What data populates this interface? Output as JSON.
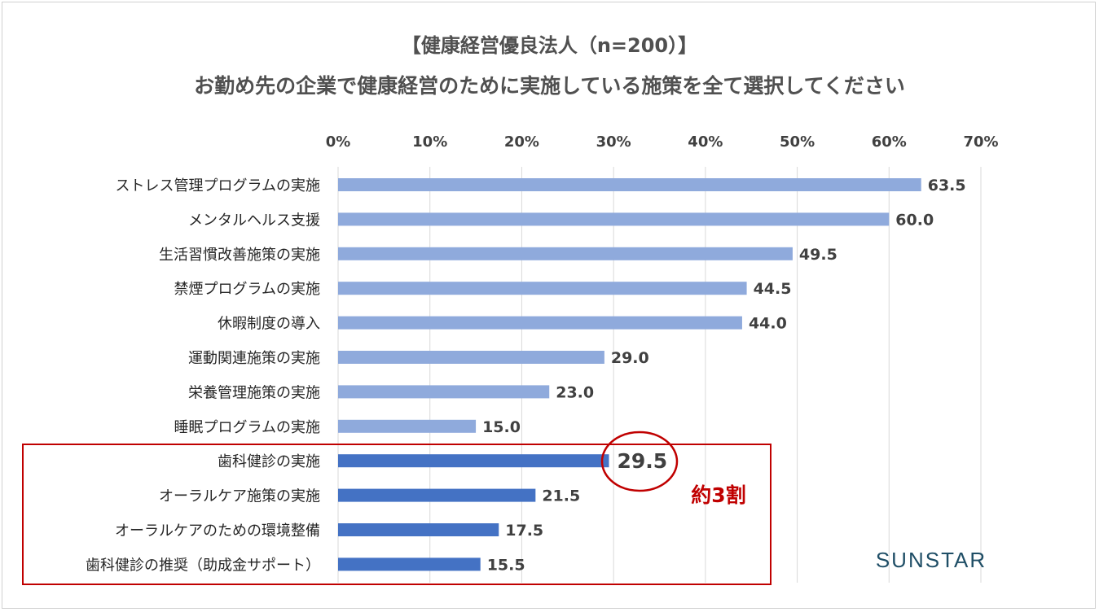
{
  "title_line1": "【健康経営優良法人（n=200）】",
  "title_line2": "お勤め先の企業で健康経営のために実施している施策を全て選択してください",
  "brand": "SUNSTAR",
  "annotation": "約3割",
  "colors": {
    "bar_light": "#8faadc",
    "bar_dark": "#4472c4",
    "highlight": "#c00000",
    "grid": "#d9d9d9"
  },
  "chart_data": {
    "type": "bar",
    "orientation": "horizontal",
    "xlim": [
      0,
      70
    ],
    "tick_labels": [
      "0%",
      "10%",
      "20%",
      "30%",
      "40%",
      "50%",
      "60%",
      "70%"
    ],
    "categories": [
      "ストレス管理プログラムの実施",
      "メンタルヘルス支援",
      "生活習慣改善施策の実施",
      "禁煙プログラムの実施",
      "休暇制度の導入",
      "運動関連施策の実施",
      "栄養管理施策の実施",
      "睡眠プログラムの実施",
      "歯科健診の実施",
      "オーラルケア施策の実施",
      "オーラルケアのための環境整備",
      "歯科健診の推奨（助成金サポート）"
    ],
    "values": [
      63.5,
      60.0,
      49.5,
      44.5,
      44.0,
      29.0,
      23.0,
      15.0,
      29.5,
      21.5,
      17.5,
      15.5
    ],
    "value_labels": [
      "63.5",
      "60.0",
      "49.5",
      "44.5",
      "44.0",
      "29.0",
      "23.0",
      "15.0",
      "29.5",
      "21.5",
      "17.5",
      "15.5"
    ],
    "highlight_group": [
      "歯科健診の実施",
      "オーラルケア施策の実施",
      "オーラルケアのための環境整備",
      "歯科健診の推奨（助成金サポート）"
    ],
    "circled_value": "29.5"
  }
}
